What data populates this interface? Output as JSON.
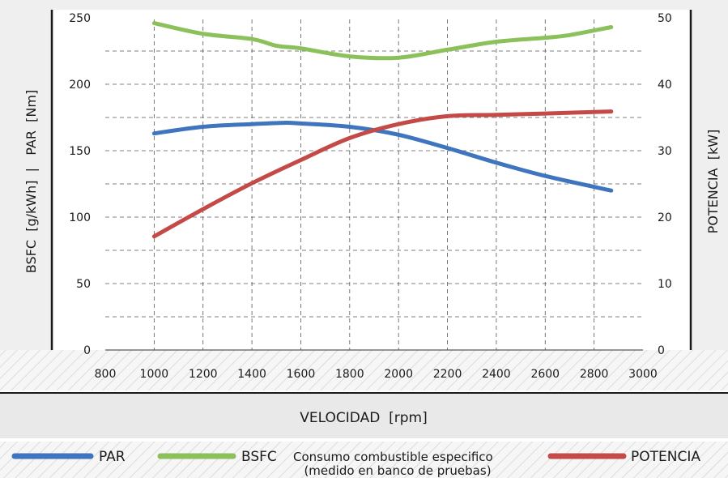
{
  "chart_data": {
    "type": "line",
    "x_ticks": [
      800,
      1000,
      1200,
      1400,
      1600,
      1800,
      2000,
      2200,
      2400,
      2600,
      2800,
      3000
    ],
    "xlim": [
      800,
      3000
    ],
    "xlabel": "VELOCIDAD  [rpm]",
    "y_left": {
      "label": "BSFC  [g/kWh]  |   PAR  [Nm]",
      "ticks": [
        0,
        50,
        100,
        150,
        200,
        250
      ],
      "lim": [
        0,
        250
      ]
    },
    "y_right": {
      "label": "POTENCIA  [kW]",
      "ticks": [
        0,
        10,
        20,
        30,
        40,
        50
      ],
      "lim": [
        0,
        50
      ]
    },
    "grid": true,
    "series": [
      {
        "name": "PAR",
        "axis": "left",
        "color": "#3f74be",
        "x": [
          1000,
          1200,
          1400,
          1530,
          1600,
          1800,
          2000,
          2200,
          2400,
          2600,
          2870
        ],
        "y": [
          163,
          168,
          170,
          171,
          170.5,
          168,
          162,
          152,
          141,
          131,
          120
        ]
      },
      {
        "name": "BSFC",
        "description": "Consumo combustible especifico",
        "description2": "(medido en banco de pruebas)",
        "axis": "left",
        "color": "#8cc05b",
        "x": [
          1000,
          1200,
          1400,
          1500,
          1600,
          1800,
          2000,
          2200,
          2400,
          2600,
          2700,
          2870
        ],
        "y": [
          246,
          238,
          234,
          229,
          227,
          221,
          220,
          226,
          232,
          235,
          237,
          243
        ]
      },
      {
        "name": "POTENCIA",
        "axis": "right",
        "color": "#c44a48",
        "x": [
          1000,
          1200,
          1400,
          1600,
          1800,
          2000,
          2200,
          2400,
          2600,
          2870
        ],
        "y": [
          17.1,
          21.2,
          25.1,
          28.6,
          31.9,
          34.0,
          35.2,
          35.4,
          35.6,
          35.9
        ]
      }
    ]
  }
}
